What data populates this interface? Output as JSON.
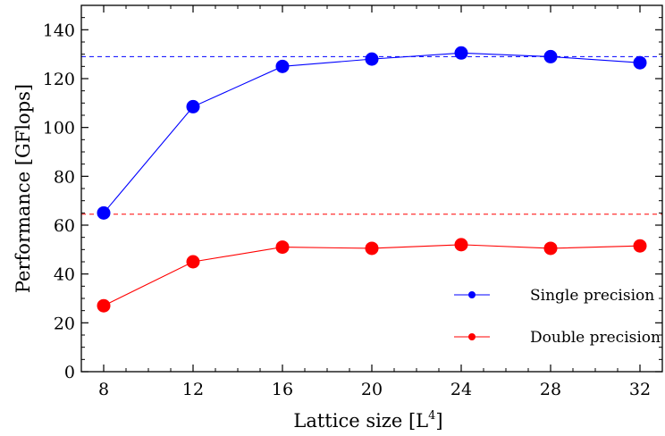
{
  "chart_data": {
    "type": "line",
    "xlabel": "Lattice size [L",
    "xlabel_sup": "4",
    "xlabel_end": "]",
    "ylabel": "Performance [GFlops]",
    "x": [
      8,
      12,
      16,
      20,
      24,
      28,
      32
    ],
    "x_tick_labels": [
      "8",
      "12",
      "16",
      "20",
      "24",
      "28",
      "32"
    ],
    "y_ticks": [
      0,
      20,
      40,
      60,
      80,
      100,
      120,
      140
    ],
    "y_tick_labels": [
      "0",
      "20",
      "40",
      "60",
      "80",
      "100",
      "120",
      "140"
    ],
    "ylim": [
      0,
      150
    ],
    "grid": false,
    "legend_position": "bottom-right",
    "series": [
      {
        "name": "Single precision",
        "values": [
          65,
          108.5,
          125,
          128,
          130.5,
          129,
          126.5
        ],
        "color": "#0000ff",
        "reference_line": 129
      },
      {
        "name": "Double precision",
        "values": [
          27,
          45,
          51,
          50.5,
          52,
          50.5,
          51.5
        ],
        "color": "#ff0000",
        "reference_line": 64.5
      }
    ]
  }
}
